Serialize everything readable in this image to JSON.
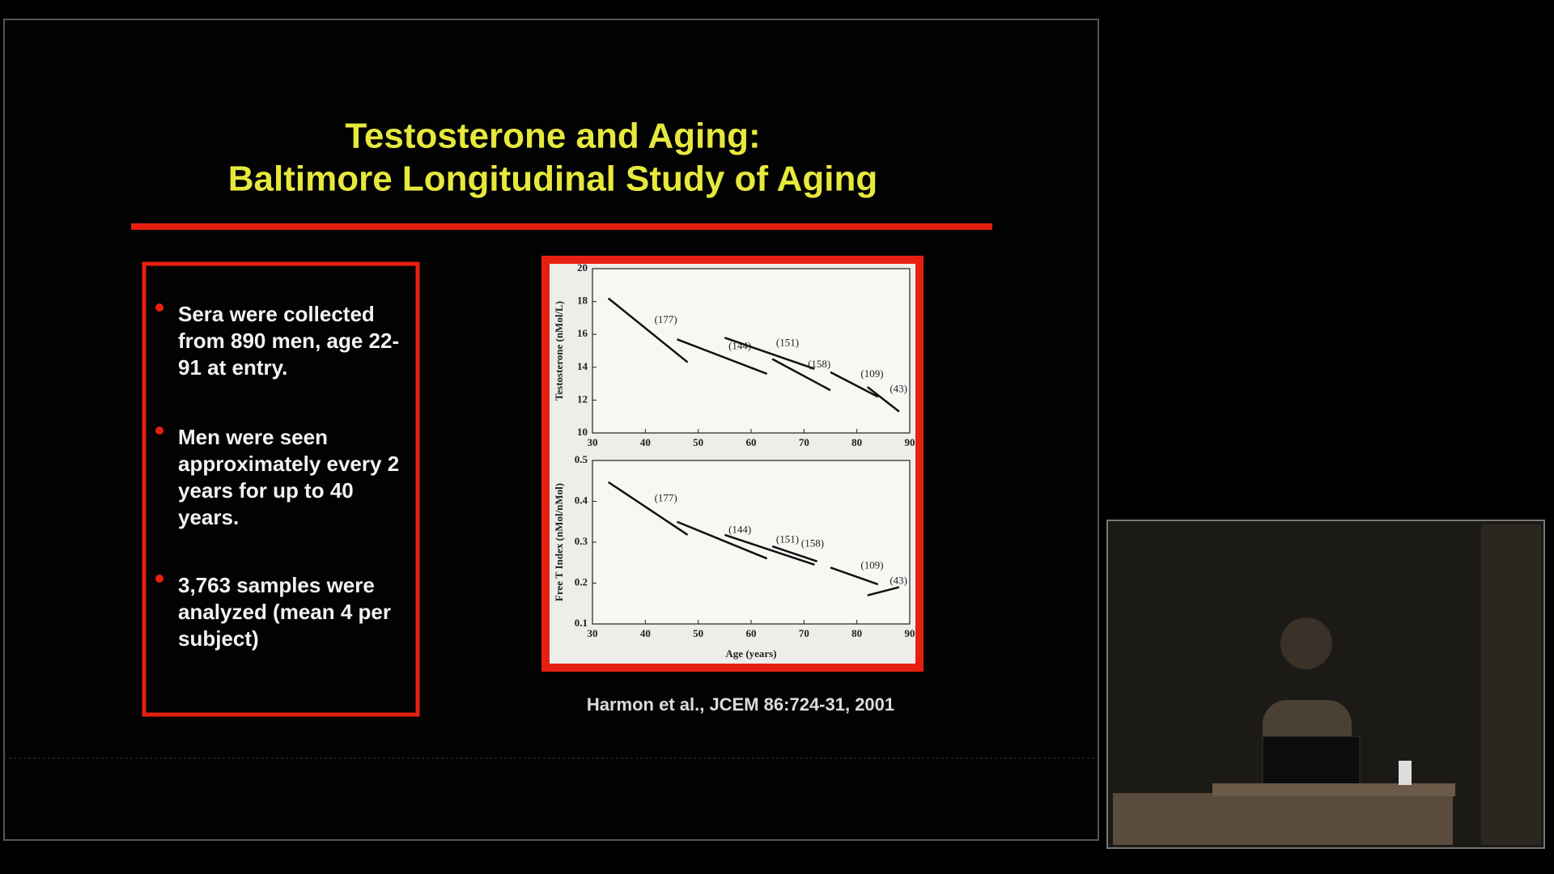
{
  "slide": {
    "title_lines": [
      "Testosterone and Aging:",
      "Baltimore Longitudinal Study of Aging"
    ],
    "bullets": [
      "Sera were collected from 890 men, age 22-91 at entry.",
      "Men were seen approximately every 2 years for up to 40 years.",
      "3,763 samples were analyzed (mean 4 per subject)"
    ],
    "citation": "Harmon et al., JCEM 86:724-31, 2001"
  },
  "chart_data": [
    {
      "type": "line",
      "ylabel": "Testosterone (nMol/L)",
      "xlim": [
        30,
        90
      ],
      "xticks": [
        30,
        40,
        50,
        60,
        70,
        80,
        90
      ],
      "ylim": [
        10,
        20
      ],
      "yticks": [
        10,
        12,
        14,
        16,
        18,
        20
      ],
      "series": [
        {
          "name": "(177)",
          "color": "#111111",
          "x": [
            33,
            48
          ],
          "values": [
            18.2,
            14.3
          ]
        },
        {
          "name": "(144)",
          "color": "#111111",
          "x": [
            46,
            63
          ],
          "values": [
            15.7,
            13.6
          ]
        },
        {
          "name": "(151)",
          "color": "#111111",
          "x": [
            55,
            72
          ],
          "values": [
            15.8,
            13.9
          ]
        },
        {
          "name": "(158)",
          "color": "#111111",
          "x": [
            64,
            75
          ],
          "values": [
            14.5,
            12.6
          ]
        },
        {
          "name": "(109)",
          "color": "#111111",
          "x": [
            75,
            84
          ],
          "values": [
            13.7,
            12.2
          ]
        },
        {
          "name": "(43)",
          "color": "#111111",
          "x": [
            82,
            88
          ],
          "values": [
            12.8,
            11.3
          ]
        }
      ]
    },
    {
      "type": "line",
      "ylabel": "Free T Index (nMol/nMol)",
      "xlabel": "Age (years)",
      "xlim": [
        30,
        90
      ],
      "xticks": [
        30,
        40,
        50,
        60,
        70,
        80,
        90
      ],
      "ylim": [
        0.1,
        0.5
      ],
      "yticks": [
        0.1,
        0.2,
        0.3,
        0.4,
        0.5
      ],
      "series": [
        {
          "name": "(177)",
          "color": "#111111",
          "x": [
            33,
            48
          ],
          "values": [
            0.447,
            0.318
          ]
        },
        {
          "name": "(144)",
          "color": "#111111",
          "x": [
            46,
            63
          ],
          "values": [
            0.35,
            0.26
          ]
        },
        {
          "name": "(151)",
          "color": "#111111",
          "x": [
            55,
            72
          ],
          "values": [
            0.318,
            0.245
          ]
        },
        {
          "name": "(158)",
          "color": "#111111",
          "x": [
            64,
            72.5
          ],
          "values": [
            0.29,
            0.253
          ]
        },
        {
          "name": "(109)",
          "color": "#111111",
          "x": [
            75,
            84
          ],
          "values": [
            0.238,
            0.197
          ]
        },
        {
          "name": "(43)",
          "color": "#111111",
          "x": [
            82,
            88
          ],
          "values": [
            0.17,
            0.19
          ]
        }
      ]
    }
  ]
}
